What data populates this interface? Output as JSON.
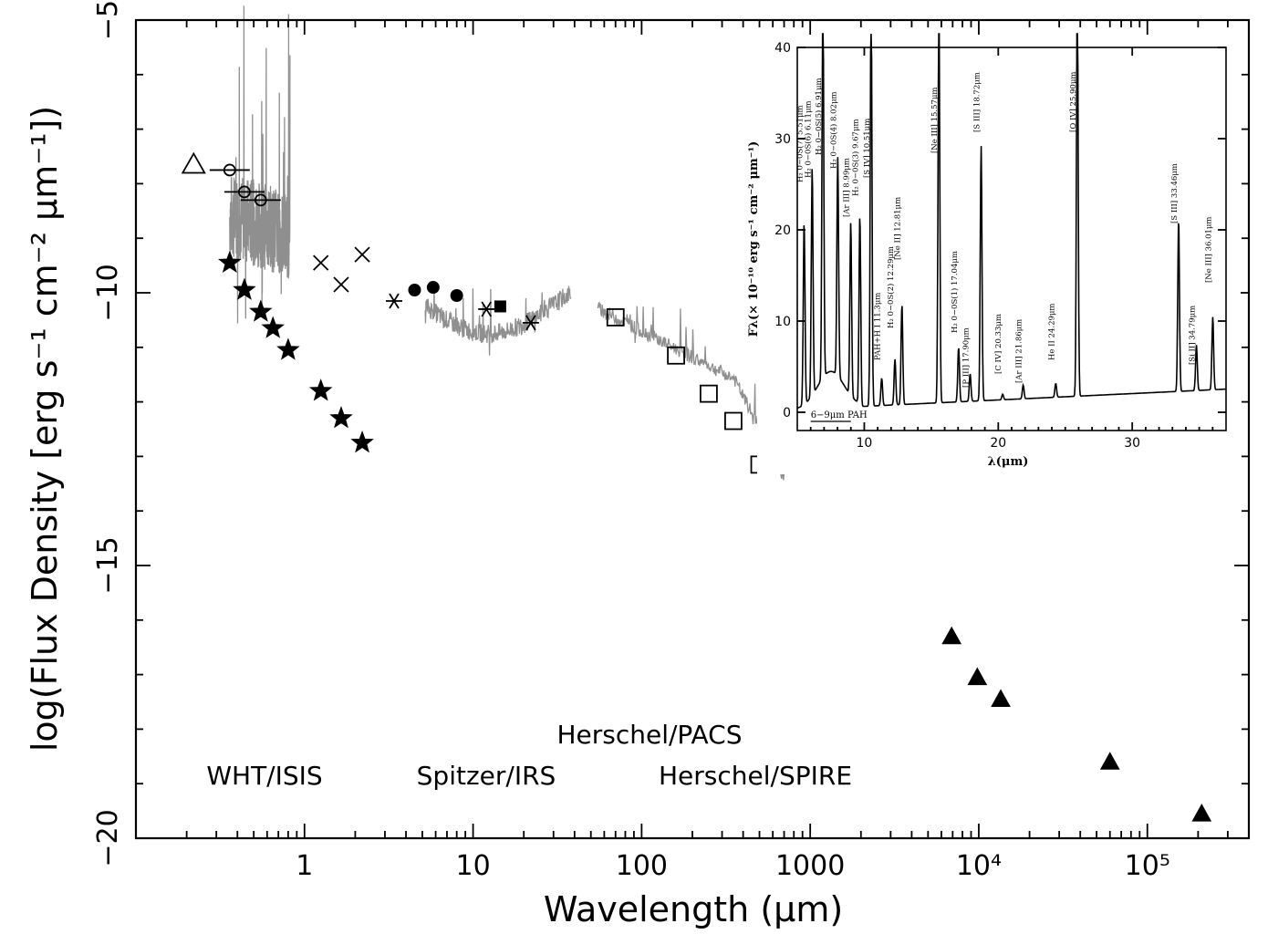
{
  "chart_data": [
    {
      "type": "scatter",
      "xlabel": "Wavelength (μm)",
      "ylabel": "log(Flux Density [erg s⁻¹ cm⁻² μm⁻¹])",
      "x_scale": "log",
      "xlim": [
        0.1,
        400000
      ],
      "ylim": [
        -20,
        -5
      ],
      "x_ticks": [
        "1",
        "10",
        "100",
        "1000",
        "10⁴",
        "10⁵"
      ],
      "x_tick_values": [
        1,
        10,
        100,
        1000,
        10000,
        100000
      ],
      "y_ticks": [
        "−5",
        "−10",
        "−15",
        "−20"
      ],
      "y_tick_values": [
        -5,
        -10,
        -15,
        -20
      ],
      "instrument_labels": {
        "wht": "WHT/ISIS",
        "irs": "Spitzer/IRS",
        "pacs": "Herschel/PACS",
        "spire": "Herschel/SPIRE"
      },
      "series": [
        {
          "marker": "open-triangle",
          "points": [
            [
              0.22,
              -7.65
            ]
          ]
        },
        {
          "marker": "open-circle",
          "points": [
            [
              0.36,
              -7.75
            ],
            [
              0.44,
              -8.15
            ],
            [
              0.55,
              -8.3
            ]
          ]
        },
        {
          "marker": "filled-star",
          "points": [
            [
              0.36,
              -9.45
            ],
            [
              0.44,
              -9.95
            ],
            [
              0.55,
              -10.35
            ],
            [
              0.65,
              -10.65
            ],
            [
              0.8,
              -11.05
            ],
            [
              1.25,
              -11.8
            ],
            [
              1.65,
              -12.3
            ],
            [
              2.2,
              -12.75
            ]
          ]
        },
        {
          "marker": "cross",
          "points": [
            [
              1.25,
              -9.45
            ],
            [
              1.65,
              -9.85
            ],
            [
              2.2,
              -9.3
            ]
          ]
        },
        {
          "marker": "asterisk",
          "points": [
            [
              3.4,
              -10.15
            ],
            [
              12,
              -10.3
            ],
            [
              22,
              -10.55
            ]
          ]
        },
        {
          "marker": "filled-circle",
          "points": [
            [
              4.5,
              -9.95
            ],
            [
              5.8,
              -9.9
            ],
            [
              8.0,
              -10.05
            ]
          ]
        },
        {
          "marker": "filled-square",
          "points": [
            [
              14.5,
              -10.25
            ]
          ]
        },
        {
          "marker": "open-square",
          "points": [
            [
              70,
              -10.45
            ],
            [
              160,
              -11.15
            ],
            [
              250,
              -11.85
            ],
            [
              350,
              -12.35
            ],
            [
              500,
              -13.15
            ]
          ]
        },
        {
          "marker": "filled-triangle",
          "points": [
            [
              6900,
              -16.3
            ],
            [
              9800,
              -17.05
            ],
            [
              13500,
              -17.45
            ],
            [
              60000,
              -18.6
            ],
            [
              210000,
              -19.55
            ]
          ]
        }
      ]
    },
    {
      "type": "line",
      "xlabel": "λ(μm)",
      "ylabel": "Fλ(× 10⁻¹⁰ erg s⁻¹ cm⁻² μm⁻¹)",
      "xlim": [
        5,
        37
      ],
      "ylim": [
        -2,
        40
      ],
      "x_ticks": [
        "10",
        "20",
        "30"
      ],
      "x_tick_values": [
        10,
        20,
        30
      ],
      "y_ticks": [
        "0",
        "10",
        "20",
        "30",
        "40"
      ],
      "y_tick_values": [
        0,
        10,
        20,
        30,
        40
      ],
      "pah_label": "6−9μm PAH",
      "pah_range": [
        6,
        9
      ],
      "line_labels": [
        {
          "text": "H₂ 0−0S(7) 5.51μm",
          "x": 5.51
        },
        {
          "text": "H₂ 0−0S(6) 6.11μm",
          "x": 6.11
        },
        {
          "text": "H₂ 0−0S(5) 6.91μm",
          "x": 6.91
        },
        {
          "text": "H₂ 0−0S(4) 8.02μm",
          "x": 8.02
        },
        {
          "text": "[Ar III] 8.99μm",
          "x": 8.99
        },
        {
          "text": "H₂ 0−0S(3) 9.67μm",
          "x": 9.67
        },
        {
          "text": "[S IV] 10.51μm",
          "x": 10.51
        },
        {
          "text": "PAH+H I 11.3μm",
          "x": 11.3
        },
        {
          "text": "H₂ 0−0S(2) 12.29μm",
          "x": 12.29
        },
        {
          "text": "[Ne II] 12.81μm",
          "x": 12.81
        },
        {
          "text": "[Ne III] 15.57μm",
          "x": 15.57
        },
        {
          "text": "H₂ 0−0S(1) 17.04μm",
          "x": 17.04
        },
        {
          "text": "[P III] 17.90μm",
          "x": 17.9
        },
        {
          "text": "[S III] 18.72μm",
          "x": 18.72
        },
        {
          "text": "[C IV] 20.33μm",
          "x": 20.33
        },
        {
          "text": "[Ar III] 21.86μm",
          "x": 21.86
        },
        {
          "text": "He II 24.29μm",
          "x": 24.29
        },
        {
          "text": "[O IV] 25.90μm",
          "x": 25.9
        },
        {
          "text": "[S III] 33.46μm",
          "x": 33.46
        },
        {
          "text": "[Si II] 34.79μm",
          "x": 34.79
        },
        {
          "text": "[Ne III] 36.01μm",
          "x": 36.01
        }
      ]
    }
  ]
}
